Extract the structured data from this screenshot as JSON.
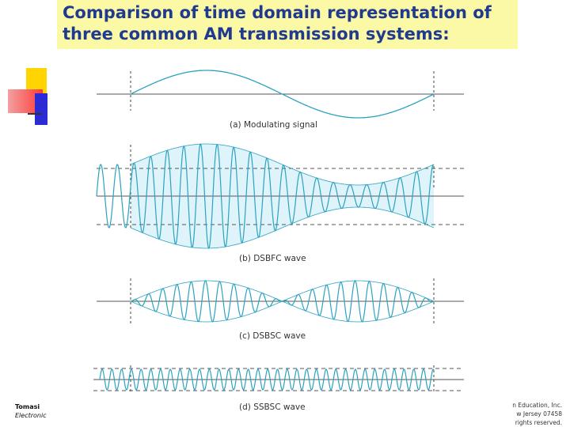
{
  "title": {
    "line1": "Comparison of time domain representation of",
    "line2": "three common AM transmission systems:"
  },
  "panels": [
    {
      "key": "modulating",
      "caption": "(a)  Modulating signal"
    },
    {
      "key": "dsbfc",
      "caption": "(b)  DSBFC wave"
    },
    {
      "key": "dsbsc",
      "caption": "(c)  DSBSC wave"
    },
    {
      "key": "ssbsc",
      "caption": "(d)  SSBSC wave"
    }
  ],
  "footer": {
    "left_line1": "Tomasi",
    "left_line2": "Electronic",
    "right_line1": "n Education, Inc.",
    "right_line2": "w Jersey 07458",
    "right_line3": "rights reserved."
  },
  "colors": {
    "title_text": "#1f3a8f",
    "title_bg": "#fbf8a6",
    "wave": "#2aa3bf",
    "envelope_fill": "#dff3fa",
    "axis": "#555555"
  }
}
